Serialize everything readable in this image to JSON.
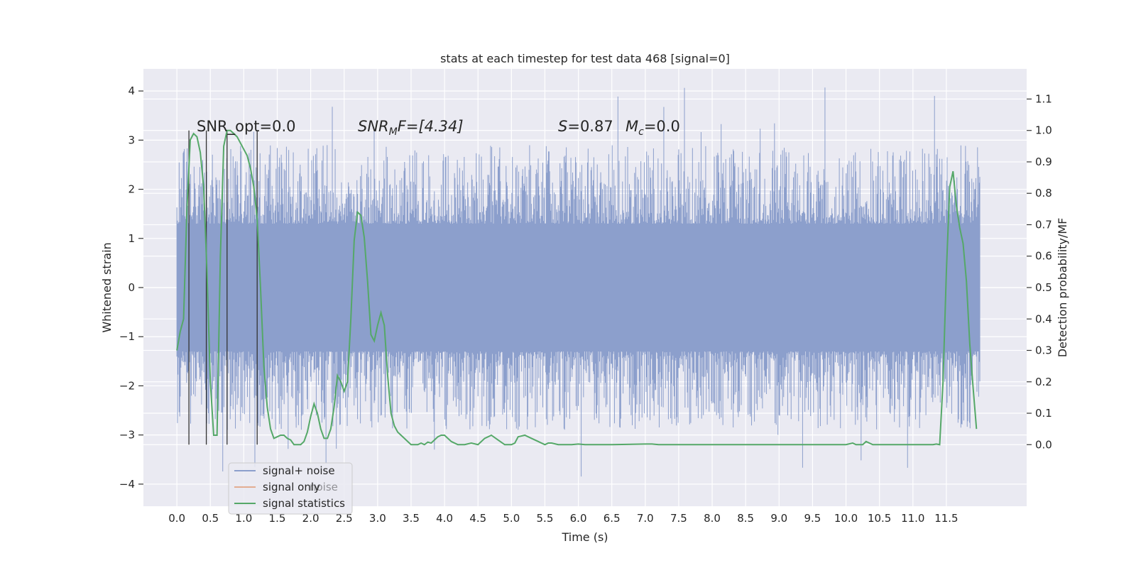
{
  "chart_data": {
    "type": "line",
    "title": "stats at each timestep for test data 468 [signal=0]",
    "xlabel": "Time (s)",
    "ylabel_left": "Whitened strain",
    "ylabel_right": "Detection probability/MF",
    "xlim": [
      -0.5,
      12.7
    ],
    "ylim_left": [
      -4.45,
      4.45
    ],
    "ylim_right": [
      -0.196,
      1.196
    ],
    "x_ticks": [
      "0.0",
      "0.5",
      "1.0",
      "1.5",
      "2.0",
      "2.5",
      "3.0",
      "3.5",
      "4.0",
      "4.5",
      "5.0",
      "5.5",
      "6.0",
      "6.5",
      "7.0",
      "7.5",
      "8.0",
      "8.5",
      "9.0",
      "9.5",
      "10.0",
      "10.5",
      "11.0",
      "11.5"
    ],
    "y_ticks_left": [
      "4",
      "3",
      "2",
      "1",
      "0",
      "−1",
      "−2",
      "−3",
      "−4"
    ],
    "y_ticks_right": [
      "1.1",
      "1.0",
      "0.9",
      "0.8",
      "0.7",
      "0.6",
      "0.5",
      "0.4",
      "0.3",
      "0.2",
      "0.1",
      "0.0"
    ],
    "annotations": {
      "snr_opt": "SNR_opt=0.0",
      "snr_mf_main": "SNR",
      "snr_mf_sub": "M",
      "snr_mf_rest": "F=[4.34]",
      "s_var": "S",
      "s_rest": "=0.87",
      "mc_var": "M",
      "mc_sub": "c",
      "mc_rest": "=0.0"
    },
    "legend": {
      "position": "lower-left",
      "entries": [
        "signal+ noise",
        "signal only",
        "signal statistics"
      ],
      "hidden_entry": "noise"
    },
    "grid": true,
    "colors": {
      "background": "#eaeaf2",
      "grid": "#ffffff",
      "noise": "#8c9fcc",
      "signal_only": "#dd8452",
      "statistics": "#55a868",
      "markers": "#333333"
    },
    "noise_series": {
      "name": "signal+ noise",
      "t_start": 0.0,
      "t_end": 12.0,
      "band_low": -1.3,
      "band_high": 1.3,
      "typical_peak": 2.3,
      "max_value": 4.1,
      "min_value": -4.05
    },
    "marker_lines": {
      "x": [
        0.18,
        0.44,
        0.75,
        1.2
      ],
      "y_range": [
        0.0,
        1.0
      ]
    },
    "statistics_series": {
      "name": "signal statistics",
      "x": [
        0.0,
        0.05,
        0.1,
        0.15,
        0.2,
        0.25,
        0.3,
        0.35,
        0.4,
        0.45,
        0.5,
        0.55,
        0.6,
        0.65,
        0.7,
        0.75,
        0.8,
        0.85,
        0.9,
        0.95,
        1.0,
        1.05,
        1.1,
        1.15,
        1.2,
        1.25,
        1.3,
        1.35,
        1.4,
        1.45,
        1.5,
        1.55,
        1.6,
        1.65,
        1.7,
        1.75,
        1.8,
        1.85,
        1.9,
        1.95,
        2.0,
        2.05,
        2.1,
        2.15,
        2.2,
        2.25,
        2.3,
        2.35,
        2.4,
        2.45,
        2.5,
        2.55,
        2.6,
        2.65,
        2.7,
        2.75,
        2.8,
        2.85,
        2.9,
        2.95,
        3.0,
        3.05,
        3.1,
        3.15,
        3.2,
        3.25,
        3.3,
        3.35,
        3.4,
        3.45,
        3.5,
        3.55,
        3.6,
        3.65,
        3.7,
        3.75,
        3.8,
        3.85,
        3.9,
        3.95,
        4.0,
        4.1,
        4.2,
        4.3,
        4.4,
        4.5,
        4.6,
        4.7,
        4.8,
        4.9,
        4.95,
        5.0,
        5.05,
        5.1,
        5.2,
        5.3,
        5.4,
        5.45,
        5.5,
        5.55,
        5.6,
        5.7,
        5.8,
        5.9,
        6.0,
        6.1,
        6.2,
        6.3,
        6.5,
        7.0,
        7.1,
        7.2,
        7.5,
        8.0,
        8.5,
        9.0,
        9.5,
        9.7,
        9.9,
        10.0,
        10.1,
        10.15,
        10.2,
        10.25,
        10.3,
        10.4,
        10.6,
        10.8,
        11.0,
        11.2,
        11.3,
        11.35,
        11.4,
        11.45,
        11.5,
        11.55,
        11.6,
        11.65,
        11.7,
        11.75,
        11.8,
        11.85,
        11.9,
        11.95
      ],
      "y": [
        0.3,
        0.36,
        0.4,
        0.75,
        0.97,
        0.99,
        0.98,
        0.93,
        0.82,
        0.55,
        0.2,
        0.03,
        0.03,
        0.6,
        0.95,
        1.0,
        1.0,
        0.99,
        0.98,
        0.96,
        0.94,
        0.92,
        0.88,
        0.82,
        0.72,
        0.5,
        0.25,
        0.12,
        0.05,
        0.02,
        0.025,
        0.03,
        0.03,
        0.02,
        0.015,
        0.0,
        0.0,
        0.0,
        0.01,
        0.04,
        0.09,
        0.13,
        0.1,
        0.05,
        0.02,
        0.02,
        0.05,
        0.12,
        0.22,
        0.2,
        0.17,
        0.2,
        0.4,
        0.65,
        0.74,
        0.73,
        0.66,
        0.52,
        0.35,
        0.33,
        0.38,
        0.42,
        0.38,
        0.22,
        0.1,
        0.06,
        0.04,
        0.03,
        0.02,
        0.01,
        0.0,
        0.0,
        0.0,
        0.005,
        0.0,
        0.008,
        0.005,
        0.015,
        0.025,
        0.03,
        0.03,
        0.01,
        0.0,
        0.0,
        0.005,
        0.0,
        0.02,
        0.03,
        0.015,
        0.0,
        0.0,
        0.0,
        0.005,
        0.025,
        0.03,
        0.02,
        0.01,
        0.005,
        0.0,
        0.005,
        0.005,
        0.0,
        0.0,
        0.0,
        0.002,
        0.0,
        0.0,
        0.0,
        0.0,
        0.002,
        0.002,
        0.0,
        0.0,
        0.0,
        0.0,
        0.0,
        0.0,
        0.0,
        0.0,
        0.0,
        0.005,
        0.0,
        0.0,
        0.0,
        0.01,
        0.0,
        0.0,
        0.0,
        0.0,
        0.0,
        0.0,
        0.002,
        0.0,
        0.2,
        0.55,
        0.82,
        0.87,
        0.76,
        0.69,
        0.64,
        0.52,
        0.32,
        0.18,
        0.05
      ]
    }
  }
}
